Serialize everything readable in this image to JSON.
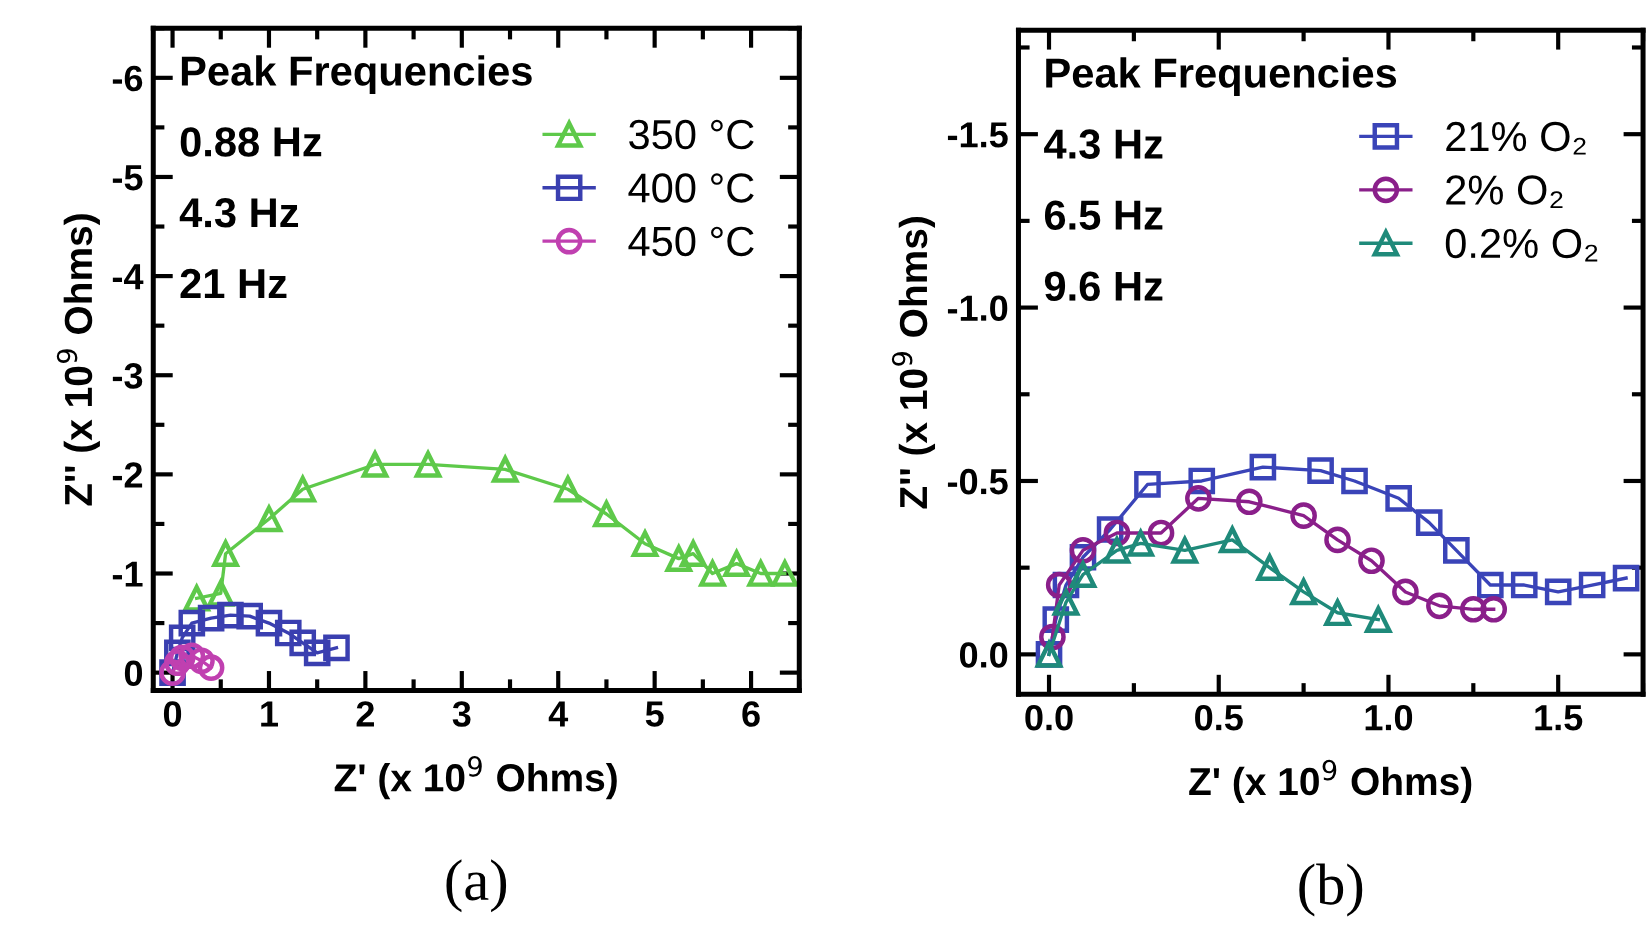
{
  "chart_data": [
    {
      "type": "line",
      "xlabel": "Z' (x 10$^{9}$ Ohms)",
      "ylabel": "Z'' (x 10$^{9}$ Ohms)",
      "legend": "top right",
      "line_style": "solid",
      "grid": false,
      "xlim": [
        -0.2,
        6.5
      ],
      "xticks": [
        0,
        1,
        2,
        3,
        4,
        5,
        6
      ],
      "ylim": [
        0.18,
        -6.5
      ],
      "yticks": [
        0,
        -1,
        -2,
        -3,
        -4,
        -5,
        -6
      ],
      "annotations": [
        "Peak Frequencies",
        "0.88 Hz",
        "4.3 Hz",
        "21 Hz",
        "(a)"
      ],
      "series": [
        {
          "name": "350 °C",
          "color": "#5ec94a",
          "marker": "triangle",
          "x": [
            0.25,
            0.5,
            0.55,
            1.0,
            1.35,
            2.1,
            2.65,
            3.45,
            4.1,
            4.5,
            4.9,
            5.25,
            5.4,
            5.6,
            5.85,
            6.1,
            6.35
          ],
          "values": [
            -0.75,
            -0.8,
            -1.2,
            -1.55,
            -1.85,
            -2.1,
            -2.1,
            -2.05,
            -1.85,
            -1.6,
            -1.3,
            -1.15,
            -1.2,
            -1.0,
            -1.1,
            -1.0,
            -1.0
          ]
        },
        {
          "name": "400 °C",
          "color": "#3a3fb0",
          "marker": "square",
          "x": [
            0.0,
            0.05,
            0.1,
            0.2,
            0.4,
            0.6,
            0.8,
            1.0,
            1.2,
            1.35,
            1.5,
            1.7
          ],
          "values": [
            0.0,
            -0.2,
            -0.35,
            -0.5,
            -0.55,
            -0.58,
            -0.57,
            -0.5,
            -0.4,
            -0.3,
            -0.2,
            -0.25
          ]
        },
        {
          "name": "450 °C",
          "color": "#c040b0",
          "marker": "circle",
          "x": [
            0.0,
            0.05,
            0.1,
            0.2,
            0.3,
            0.4
          ],
          "values": [
            0.0,
            -0.1,
            -0.15,
            -0.17,
            -0.12,
            -0.05
          ]
        }
      ]
    },
    {
      "type": "line",
      "xlabel": "Z' (x 10$^{9}$ Ohms)",
      "ylabel": "Z'' (x 10$^{9}$ Ohms)",
      "legend": "top right",
      "line_style": "solid",
      "grid": false,
      "xlim": [
        -0.09,
        1.75
      ],
      "xticks": [
        {
          "value": 0,
          "label": "0.0"
        },
        0.5,
        {
          "value": 1,
          "label": "1.0"
        },
        1.5
      ],
      "ylim": [
        0.115,
        -1.8
      ],
      "yticks": [
        {
          "value": 0,
          "label": "0.0"
        },
        -0.5,
        {
          "value": -1,
          "label": "-1.0"
        },
        -1.5
      ],
      "annotations": [
        "Peak Frequencies",
        "4.3 Hz",
        "6.5 Hz",
        "9.6 Hz",
        "(b)"
      ],
      "series": [
        {
          "name": "21% O₂",
          "color": "#3a44b8",
          "marker": "square",
          "x": [
            0.0,
            0.02,
            0.05,
            0.1,
            0.18,
            0.29,
            0.45,
            0.63,
            0.8,
            0.9,
            1.03,
            1.12,
            1.2,
            1.3,
            1.4,
            1.5,
            1.6,
            1.7
          ],
          "values": [
            0.0,
            -0.1,
            -0.2,
            -0.28,
            -0.36,
            -0.49,
            -0.5,
            -0.54,
            -0.53,
            -0.5,
            -0.45,
            -0.38,
            -0.3,
            -0.2,
            -0.2,
            -0.18,
            -0.2,
            -0.22
          ]
        },
        {
          "name": "2% O₂",
          "color": "#8a1f8a",
          "marker": "circle",
          "x": [
            0.01,
            0.03,
            0.1,
            0.2,
            0.33,
            0.44,
            0.59,
            0.75,
            0.85,
            0.95,
            1.05,
            1.15,
            1.25,
            1.31
          ],
          "values": [
            -0.05,
            -0.2,
            -0.3,
            -0.35,
            -0.35,
            -0.45,
            -0.44,
            -0.4,
            -0.33,
            -0.27,
            -0.18,
            -0.14,
            -0.13,
            -0.13
          ]
        },
        {
          "name": "0.2% O₂",
          "color": "#1f8a7a",
          "marker": "triangle",
          "x": [
            0.0,
            0.05,
            0.1,
            0.2,
            0.27,
            0.4,
            0.54,
            0.65,
            0.75,
            0.85,
            0.97
          ],
          "values": [
            0.0,
            -0.15,
            -0.23,
            -0.3,
            -0.32,
            -0.3,
            -0.33,
            -0.25,
            -0.18,
            -0.12,
            -0.1
          ]
        }
      ]
    }
  ]
}
